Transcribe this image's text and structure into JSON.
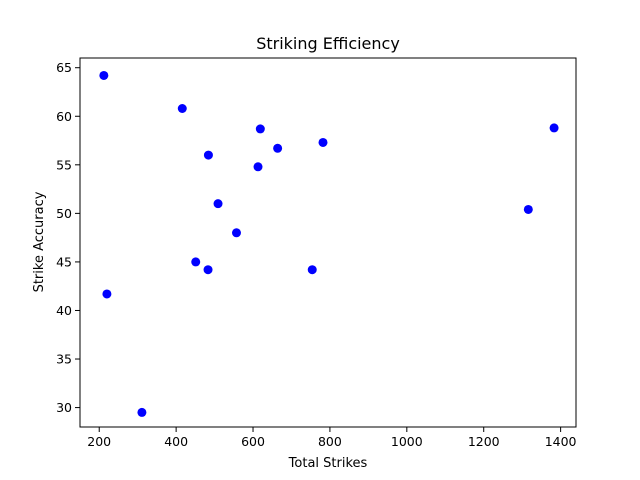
{
  "colors": {
    "point": "#0000ff",
    "axes": "#000000",
    "background": "#ffffff"
  },
  "chart_data": {
    "type": "scatter",
    "title": "Striking Efficiency",
    "xlabel": "Total Strikes",
    "ylabel": "Strike Accuracy",
    "xlim": [
      150,
      1440
    ],
    "ylim": [
      28,
      66
    ],
    "xticks": [
      200,
      400,
      600,
      800,
      1000,
      1200,
      1400
    ],
    "yticks": [
      30,
      35,
      40,
      45,
      50,
      55,
      60,
      65
    ],
    "grid": false,
    "legend": "none",
    "series": [
      {
        "points": [
          {
            "x": 212,
            "y": 64.2
          },
          {
            "x": 220,
            "y": 41.7
          },
          {
            "x": 311,
            "y": 29.5
          },
          {
            "x": 416,
            "y": 60.8
          },
          {
            "x": 451,
            "y": 45.0
          },
          {
            "x": 483,
            "y": 44.2
          },
          {
            "x": 484,
            "y": 56.0
          },
          {
            "x": 509,
            "y": 51.0
          },
          {
            "x": 557,
            "y": 48.0
          },
          {
            "x": 613,
            "y": 54.8
          },
          {
            "x": 619,
            "y": 58.7
          },
          {
            "x": 664,
            "y": 56.7
          },
          {
            "x": 754,
            "y": 44.2
          },
          {
            "x": 782,
            "y": 57.3
          },
          {
            "x": 1316,
            "y": 50.4
          },
          {
            "x": 1383,
            "y": 58.8
          }
        ]
      }
    ]
  }
}
